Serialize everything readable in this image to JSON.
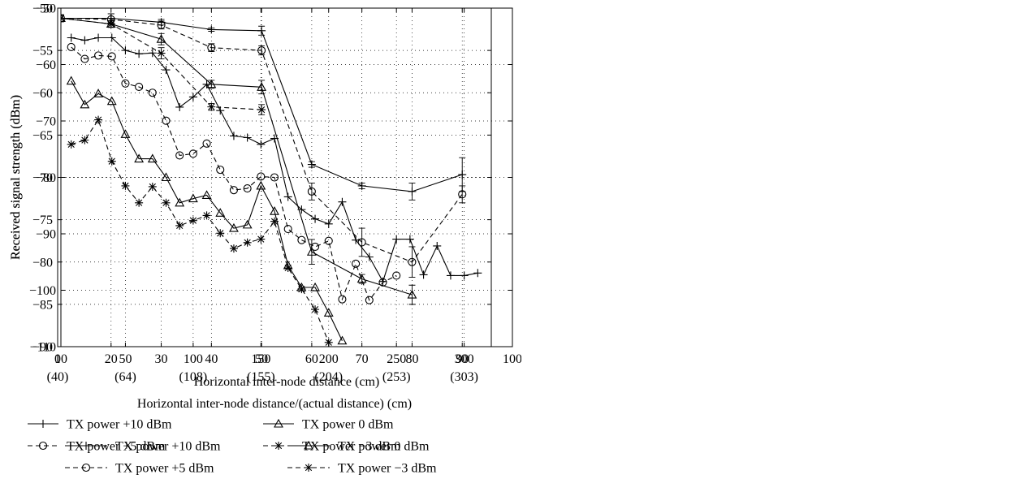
{
  "chart_data": [
    {
      "type": "line",
      "xlabel": "Horizontal inter-node distance (cm)",
      "ylabel": "Received signal strength (dBm)",
      "xlim": [
        10,
        100
      ],
      "ylim": [
        -110,
        -50
      ],
      "xticks": [
        10,
        20,
        30,
        40,
        50,
        60,
        70,
        80,
        90,
        100
      ],
      "yticks": [
        -50,
        -60,
        -70,
        -80,
        -90,
        -100,
        -110
      ],
      "grid": true,
      "legend_position": "bottom",
      "series": [
        {
          "name": "TX power +10 dBm",
          "marker": "plus",
          "dash": "solid",
          "x": [
            10,
            20,
            30,
            40,
            50,
            60,
            70,
            80,
            90
          ],
          "y": [
            -51.8,
            -51.8,
            -52.5,
            -53.8,
            -54,
            -77.7,
            -81.5,
            -82.5,
            -79.5
          ],
          "err": [
            0.6,
            0.8,
            0.5,
            0.3,
            0.8,
            0.5,
            0.5,
            1.5,
            3
          ]
        },
        {
          "name": "TX power +5 dBm",
          "marker": "circle",
          "dash": "dashed",
          "x": [
            10,
            20,
            30,
            40,
            50,
            60,
            70,
            80,
            90
          ],
          "y": [
            -51.8,
            -52,
            -53,
            -57,
            -57.5,
            -82.5,
            -91.5,
            -95,
            -83
          ],
          "err": [
            0.6,
            1,
            0.7,
            0.7,
            0.8,
            1.5,
            2.5,
            2.7,
            1.5
          ]
        },
        {
          "name": "TX power 0 dBm",
          "marker": "triangle",
          "dash": "solid",
          "x": [
            10,
            20,
            30,
            40,
            50,
            60,
            70,
            80
          ],
          "y": [
            -51.8,
            -52.8,
            -55.5,
            -63.5,
            -64,
            -93.2,
            -98,
            -100.8
          ],
          "err": [
            0.6,
            0.6,
            1,
            0.7,
            1.2,
            2.2,
            0.8,
            1.7
          ]
        },
        {
          "name": "TX power −3 dBm",
          "marker": "asterisk",
          "dash": "dashed",
          "x": [
            10,
            20,
            30,
            40,
            50
          ],
          "y": [
            -51.8,
            -52.8,
            -58,
            -67.5,
            -68
          ],
          "err": [
            0.6,
            0.6,
            1,
            0.6,
            0.9
          ]
        }
      ]
    },
    {
      "type": "line",
      "xlabel": "Horizontal inter-node distance/(actual distance) (cm)",
      "ylabel": "Received signal strength (dBm)",
      "xlim": [
        0,
        320
      ],
      "ylim": [
        -90,
        -50
      ],
      "xticks": [
        0,
        50,
        100,
        150,
        200,
        250,
        300
      ],
      "xticks_secondary": [
        {
          "x": 0,
          "label": "(40)"
        },
        {
          "x": 50,
          "label": "(64)"
        },
        {
          "x": 100,
          "label": "(108)"
        },
        {
          "x": 150,
          "label": "(155)"
        },
        {
          "x": 200,
          "label": "(204)"
        },
        {
          "x": 250,
          "label": "(253)"
        },
        {
          "x": 300,
          "label": "(303)"
        }
      ],
      "yticks": [
        -50,
        -55,
        -60,
        -65,
        -70,
        -75,
        -80,
        -85,
        -90
      ],
      "grid": true,
      "legend_position": "bottom",
      "series": [
        {
          "name": "TX power +10 dBm",
          "marker": "plus",
          "dash": "solid",
          "x": [
            10,
            20,
            30,
            40,
            50,
            60,
            70,
            80,
            90,
            100,
            110,
            120,
            130,
            140,
            150,
            160,
            170,
            180,
            190,
            200,
            210,
            220,
            230,
            240,
            250,
            260,
            270,
            280,
            290,
            300,
            310
          ],
          "y": [
            -53.5,
            -53.8,
            -53.5,
            -53.5,
            -55,
            -55.4,
            -55.3,
            -57.3,
            -61.7,
            -60.5,
            -59,
            -62.1,
            -65.1,
            -65.3,
            -66.1,
            -65.4,
            -72.3,
            -73.8,
            -74.9,
            -75.5,
            -72.9,
            -77.4,
            -79.4,
            -82.3,
            -77.3,
            -77.3,
            -81.5,
            -78.1,
            -81.6,
            -81.6,
            -81.3
          ]
        },
        {
          "name": "TX power +5 dBm",
          "marker": "circle",
          "dash": "dashed",
          "x": [
            10,
            20,
            30,
            40,
            50,
            60,
            70,
            80,
            90,
            100,
            110,
            120,
            130,
            140,
            150,
            160,
            170,
            180,
            190,
            200,
            210,
            220,
            230,
            240,
            250
          ],
          "y": [
            -54.6,
            -56,
            -55.6,
            -55.7,
            -58.9,
            -59.3,
            -60,
            -63.3,
            -67.4,
            -67.2,
            -66,
            -69.1,
            -71.5,
            -71.3,
            -69.9,
            -70,
            -76.1,
            -77.4,
            -78.2,
            -77.5,
            -84.4,
            -80.2,
            -84.5,
            -82.4,
            -81.6
          ]
        },
        {
          "name": "TX power 0 dBm",
          "marker": "triangle",
          "dash": "solid",
          "x": [
            10,
            20,
            30,
            40,
            50,
            60,
            70,
            80,
            90,
            100,
            110,
            120,
            130,
            140,
            150,
            160,
            170,
            180,
            190,
            200,
            210
          ],
          "y": [
            -58.6,
            -61.4,
            -60.1,
            -61,
            -64.9,
            -67.8,
            -67.8,
            -70,
            -73,
            -72.5,
            -72.1,
            -74.2,
            -76,
            -75.6,
            -71,
            -74,
            -80.4,
            -83,
            -83,
            -86,
            -89.3
          ]
        },
        {
          "name": "TX power −3 dBm",
          "marker": "asterisk",
          "dash": "dashed",
          "x": [
            10,
            20,
            30,
            40,
            50,
            60,
            70,
            80,
            90,
            100,
            110,
            120,
            130,
            140,
            150,
            160,
            170,
            180,
            190,
            200
          ],
          "y": [
            -66.1,
            -65.6,
            -63.2,
            -68.1,
            -71,
            -73,
            -71.1,
            -73,
            -75.7,
            -75.1,
            -74.5,
            -76.6,
            -78.4,
            -77.7,
            -77.3,
            -75.2,
            -80.7,
            -83.2,
            -85.6,
            -89.5
          ]
        }
      ]
    }
  ]
}
